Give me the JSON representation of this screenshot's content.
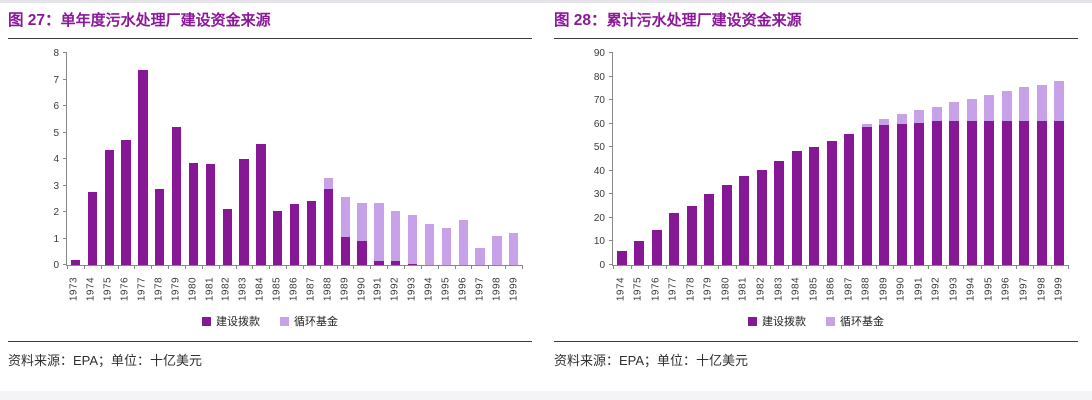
{
  "colors": {
    "accent": "#8b189b",
    "grants": "#861896",
    "revolving": "#c8a2e8",
    "axis_line": "#888888",
    "axis_text": "#3a3a3a",
    "rule": "#3c3c3c"
  },
  "panels": [
    {
      "figure_no": "图 27：",
      "title": "单年度污水处理厂建设资金来源",
      "source_note": "资料来源：EPA；单位：十亿美元",
      "chart_data": {
        "type": "bar",
        "stacked": true,
        "grid": false,
        "legend_position": "bottom",
        "ylim": [
          0,
          8
        ],
        "yticks": [
          0,
          1,
          2,
          3,
          4,
          5,
          6,
          7,
          8
        ],
        "categories": [
          "1973",
          "1974",
          "1975",
          "1976",
          "1977",
          "1978",
          "1979",
          "1980",
          "1981",
          "1982",
          "1983",
          "1984",
          "1985",
          "1986",
          "1987",
          "1988",
          "1989",
          "1990",
          "1991",
          "1992",
          "1993",
          "1994",
          "1995",
          "1996",
          "1997",
          "1998",
          "1999"
        ],
        "series": [
          {
            "name": "建设拨款",
            "color": "#861896",
            "values": [
              0.2,
              2.75,
              4.35,
              4.7,
              7.35,
              2.85,
              5.2,
              3.85,
              3.8,
              2.1,
              4.0,
              4.55,
              2.05,
              2.3,
              2.4,
              2.85,
              1.05,
              0.9,
              0.15,
              0.15,
              0.05,
              0,
              0,
              0,
              0,
              0,
              0
            ]
          },
          {
            "name": "循环基金",
            "color": "#c8a2e8",
            "values": [
              0,
              0,
              0,
              0,
              0,
              0,
              0,
              0,
              0,
              0,
              0,
              0,
              0,
              0,
              0,
              0.45,
              1.5,
              1.45,
              2.2,
              1.9,
              1.85,
              1.55,
              1.4,
              1.7,
              0.65,
              1.1,
              1.2
            ]
          }
        ]
      }
    },
    {
      "figure_no": "图 28：",
      "title": "累计污水处理厂建设资金来源",
      "source_note": "资料来源：EPA；单位：十亿美元",
      "chart_data": {
        "type": "bar",
        "stacked": true,
        "grid": false,
        "legend_position": "bottom",
        "ylim": [
          0,
          90
        ],
        "yticks": [
          0,
          10,
          20,
          30,
          40,
          50,
          60,
          70,
          80,
          90
        ],
        "categories": [
          "1974",
          "1975",
          "1976",
          "1977",
          "1978",
          "1979",
          "1980",
          "1981",
          "1982",
          "1983",
          "1984",
          "1985",
          "1986",
          "1987",
          "1988",
          "1989",
          "1990",
          "1991",
          "1992",
          "1993",
          "1994",
          "1995",
          "1996",
          "1997",
          "1998",
          "1999"
        ],
        "series": [
          {
            "name": "建设拨款",
            "color": "#861896",
            "values": [
              6,
              10,
              15,
              22,
              25,
              30,
              34,
              38,
              40.5,
              44,
              48.5,
              50,
              52.5,
              55.5,
              58.5,
              59.5,
              60,
              60.5,
              61,
              61,
              61,
              61,
              61,
              61,
              61,
              61
            ]
          },
          {
            "name": "循环基金",
            "color": "#c8a2e8",
            "values": [
              0,
              0,
              0,
              0,
              0,
              0,
              0,
              0,
              0,
              0,
              0,
              0,
              0,
              0,
              1.5,
              2.5,
              4,
              5.5,
              6,
              8,
              9.5,
              11,
              13,
              14.5,
              15.5,
              17
            ]
          }
        ]
      }
    }
  ]
}
